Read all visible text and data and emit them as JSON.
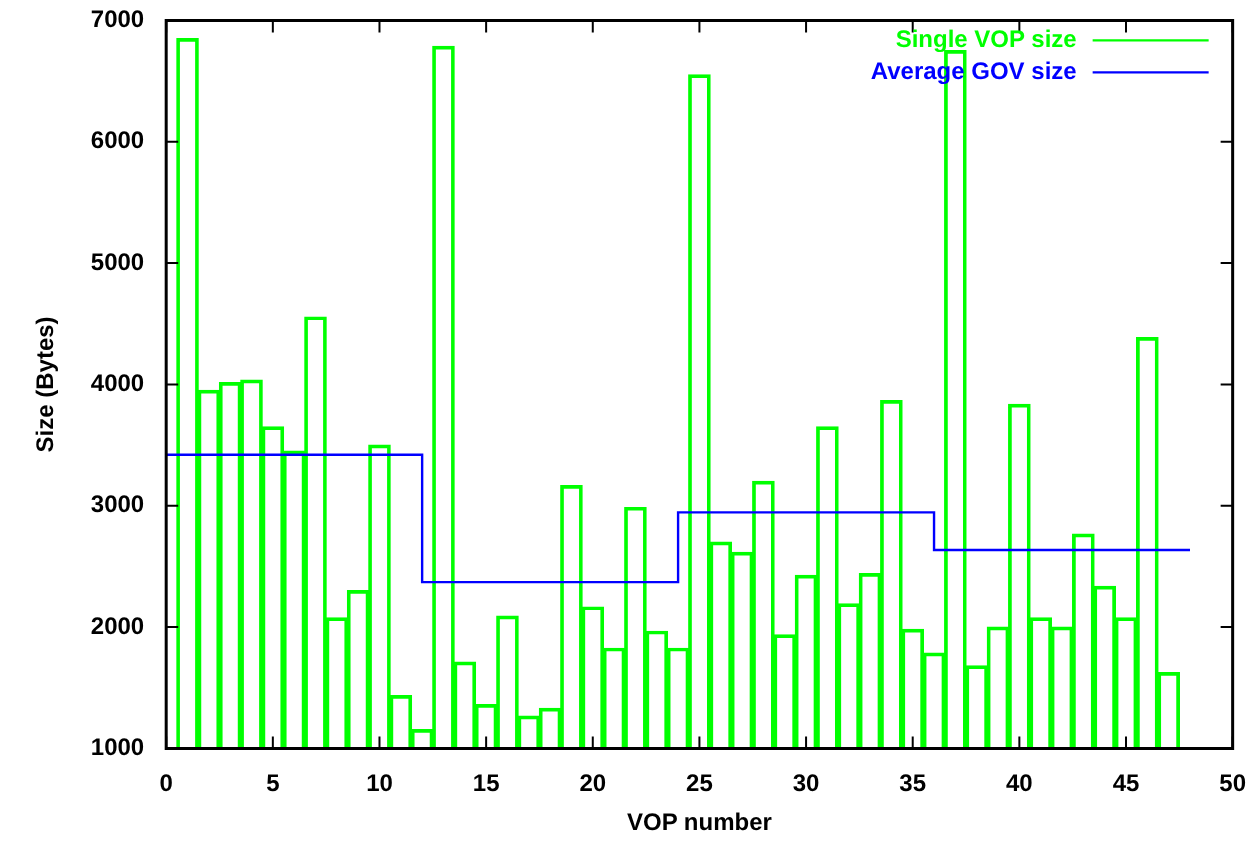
{
  "chart_data": {
    "type": "bar",
    "xlabel": "VOP number",
    "ylabel": "Size (Bytes)",
    "x": [
      1,
      2,
      3,
      4,
      5,
      6,
      7,
      8,
      9,
      10,
      11,
      12,
      13,
      14,
      15,
      16,
      17,
      18,
      19,
      20,
      21,
      22,
      23,
      24,
      25,
      26,
      27,
      28,
      29,
      30,
      31,
      32,
      33,
      34,
      35,
      36,
      37,
      38,
      39,
      40,
      41,
      42,
      43,
      44,
      45,
      46,
      47
    ],
    "series": [
      {
        "name": "Single VOP size",
        "color": "#00ff00",
        "values": [
          6850,
          3950,
          4015,
          4035,
          3650,
          3450,
          4555,
          2075,
          2300,
          3500,
          1435,
          1155,
          6785,
          1710,
          1360,
          2090,
          1265,
          1330,
          3165,
          2165,
          1825,
          2985,
          1965,
          1825,
          6550,
          2700,
          2615,
          3200,
          1935,
          2425,
          3650,
          2190,
          2440,
          3865,
          1980,
          1785,
          6750,
          1680,
          2000,
          3835,
          2075,
          2000,
          2765,
          2335,
          2075,
          4385,
          1625
        ]
      },
      {
        "name": "Average GOV size",
        "type": "step",
        "color": "#0000ff",
        "x": [
          0,
          12,
          24,
          36,
          48
        ],
        "values": [
          3420,
          2370,
          2945,
          2635,
          2635
        ]
      }
    ],
    "xlim": [
      0,
      50
    ],
    "xticks": [
      0,
      5,
      10,
      15,
      20,
      25,
      30,
      35,
      40,
      45,
      50
    ],
    "ylim": [
      1000,
      7000
    ],
    "yticks": [
      1000,
      2000,
      3000,
      4000,
      5000,
      6000,
      7000
    ],
    "legend": "top right"
  }
}
